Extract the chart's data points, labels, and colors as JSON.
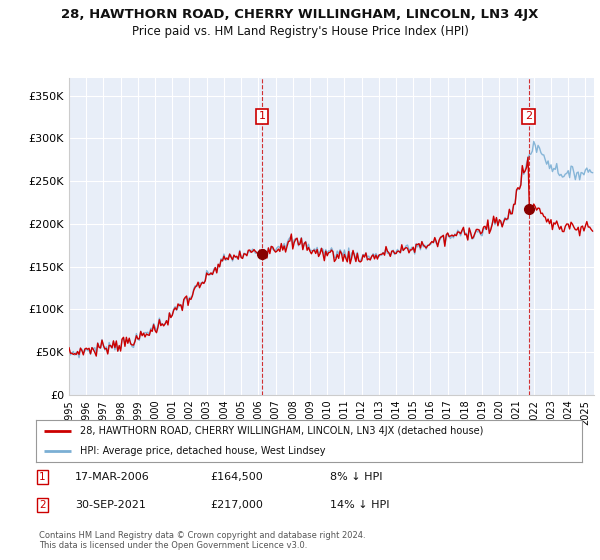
{
  "title": "28, HAWTHORN ROAD, CHERRY WILLINGHAM, LINCOLN, LN3 4JX",
  "subtitle": "Price paid vs. HM Land Registry's House Price Index (HPI)",
  "legend_line1": "28, HAWTHORN ROAD, CHERRY WILLINGHAM, LINCOLN, LN3 4JX (detached house)",
  "legend_line2": "HPI: Average price, detached house, West Lindsey",
  "annotation1_date": "17-MAR-2006",
  "annotation1_price": "£164,500",
  "annotation1_hpi": "8% ↓ HPI",
  "annotation2_date": "30-SEP-2021",
  "annotation2_price": "£217,000",
  "annotation2_hpi": "14% ↓ HPI",
  "footnote": "Contains HM Land Registry data © Crown copyright and database right 2024.\nThis data is licensed under the Open Government Licence v3.0.",
  "hpi_color": "#7bafd4",
  "price_color": "#cc0000",
  "background_color": "#ffffff",
  "plot_bg_color": "#e8eef8",
  "grid_color": "#ffffff",
  "ylim": [
    0,
    370000
  ],
  "yticks": [
    0,
    50000,
    100000,
    150000,
    200000,
    250000,
    300000,
    350000
  ],
  "ytick_labels": [
    "£0",
    "£50K",
    "£100K",
    "£150K",
    "£200K",
    "£250K",
    "£300K",
    "£350K"
  ],
  "sale1_t": 2006.208,
  "sale2_t": 2021.708,
  "sale1_price": 164500,
  "sale2_price": 217000
}
